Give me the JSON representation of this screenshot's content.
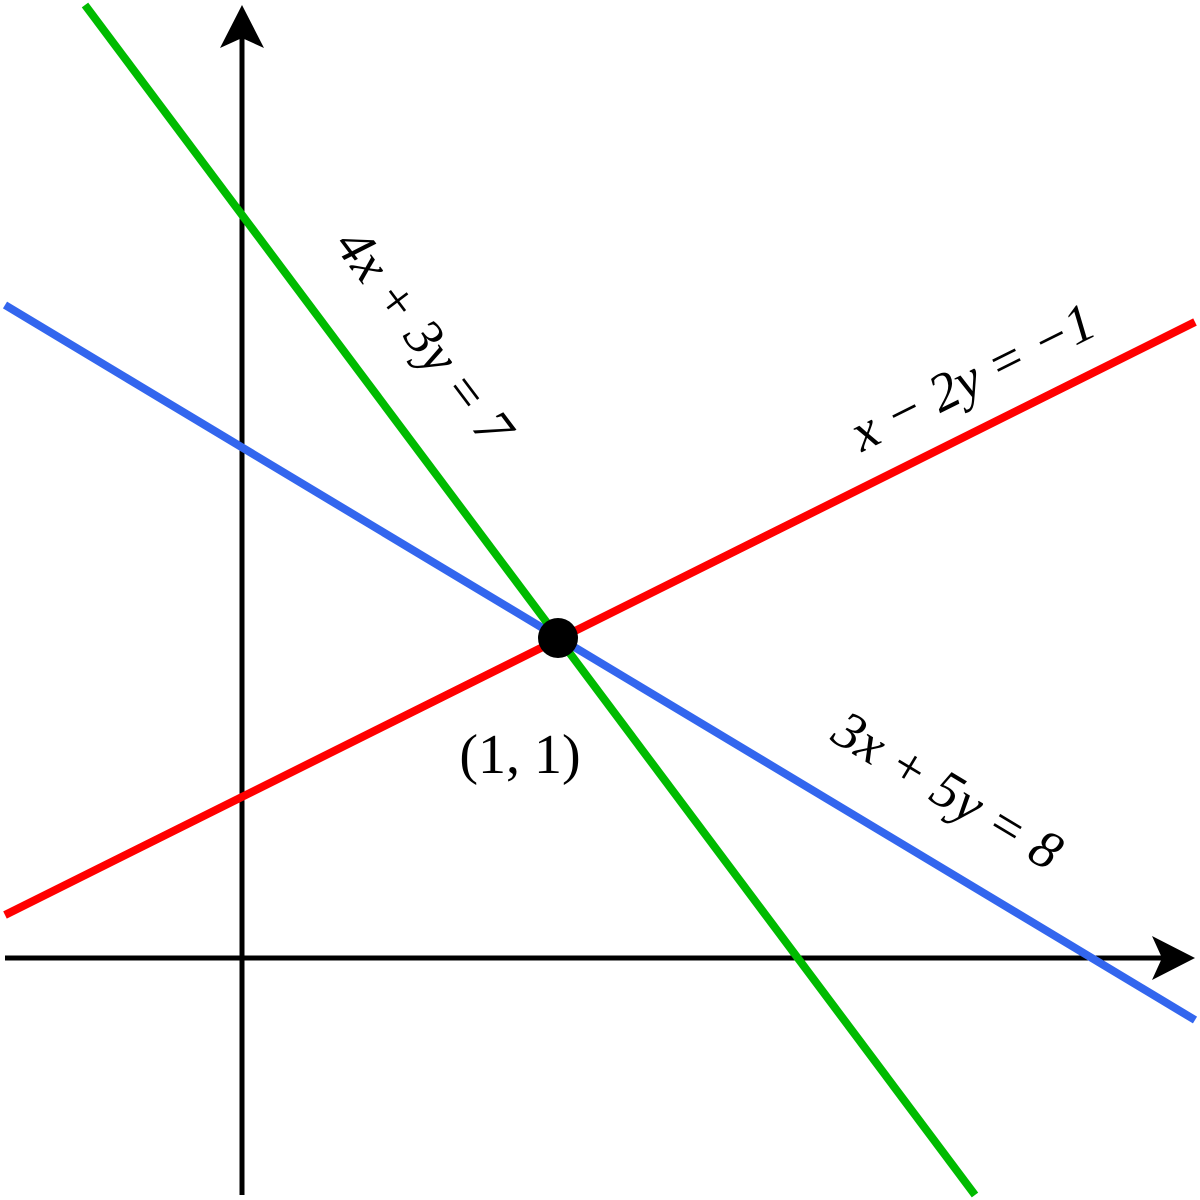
{
  "equations": [
    "4x + 3y = 7",
    "x − 2y = −1",
    "3x + 5y = 8"
  ],
  "point_label": "(1, 1)"
}
